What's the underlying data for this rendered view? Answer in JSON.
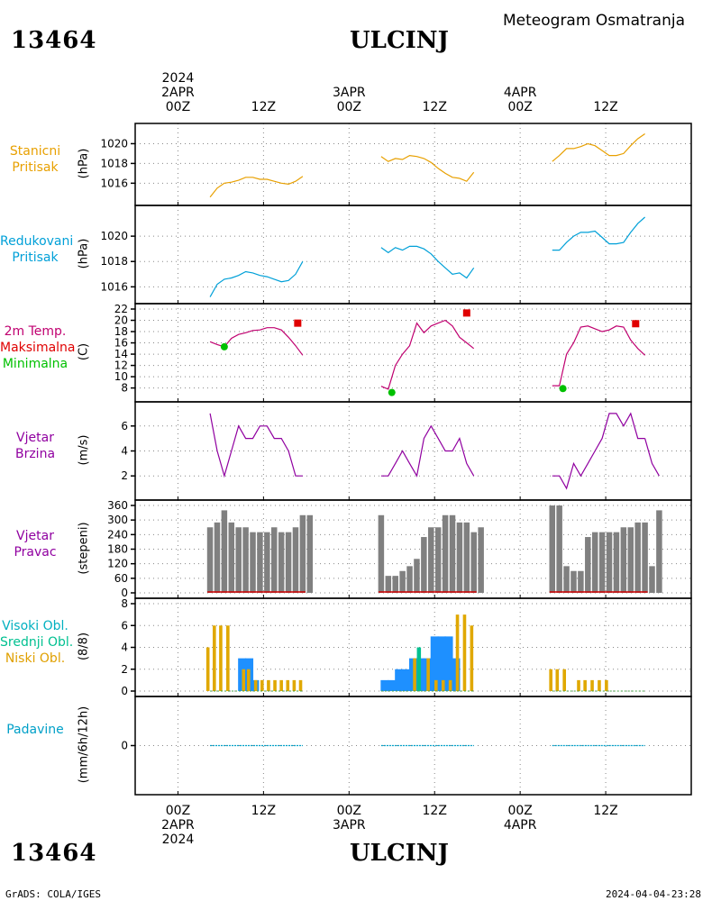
{
  "header": {
    "station_id": "13464",
    "city": "ULCINJ",
    "subtitle": "Meteogram Osmatranja"
  },
  "footer": {
    "left": "GrADS: COLA/IGES",
    "right": "2024-04-04-23:28"
  },
  "time_axis": {
    "top": [
      {
        "l1": "2024",
        "l2": "2APR",
        "l3": "00Z"
      },
      {
        "l1": "",
        "l2": "",
        "l3": "12Z"
      },
      {
        "l1": "",
        "l2": "3APR",
        "l3": "00Z"
      },
      {
        "l1": "",
        "l2": "",
        "l3": "12Z"
      },
      {
        "l1": "",
        "l2": "4APR",
        "l3": "00Z"
      },
      {
        "l1": "",
        "l2": "",
        "l3": "12Z"
      }
    ],
    "bottom": [
      {
        "l1": "00Z",
        "l2": "2APR",
        "l3": "2024"
      },
      {
        "l1": "12Z",
        "l2": "",
        "l3": ""
      },
      {
        "l1": "00Z",
        "l2": "3APR",
        "l3": ""
      },
      {
        "l1": "12Z",
        "l2": "",
        "l3": ""
      },
      {
        "l1": "00Z",
        "l2": "4APR",
        "l3": ""
      },
      {
        "l1": "12Z",
        "l2": "",
        "l3": ""
      }
    ]
  },
  "panels": {
    "p1": {
      "labels": [
        "Stanicni",
        "Pritisak"
      ],
      "ylabel": "(hPa)",
      "colors": [
        "#E8A000"
      ]
    },
    "p2": {
      "labels": [
        "Redukovani",
        "Pritisak"
      ],
      "ylabel": "(hPa)",
      "colors": [
        "#00A0D8"
      ]
    },
    "p3": {
      "labels": [
        "2m Temp.",
        "Maksimalna",
        "Minimalna"
      ],
      "ylabel": "(C)",
      "colors": [
        "#C00070",
        "#E00000",
        "#00C000"
      ]
    },
    "p4": {
      "labels": [
        "Vjetar",
        "Brzina"
      ],
      "ylabel": "(m/s)",
      "colors": [
        "#9000A0"
      ]
    },
    "p5": {
      "labels": [
        "Vjetar",
        "Pravac"
      ],
      "ylabel": "(stepeni)",
      "colors": [
        "#9000A0"
      ]
    },
    "p6": {
      "labels": [
        "Visoki Obl.",
        "Srednji Obl.",
        "Niski Obl."
      ],
      "ylabel": "(8/8)",
      "colors": [
        "#00B0C0",
        "#00C090",
        "#E0A000"
      ]
    },
    "p7": {
      "labels": [
        "Padavine"
      ],
      "ylabel": "(mm/6h/12h)",
      "colors": [
        "#00A0C8"
      ]
    }
  },
  "chart_data": [
    {
      "type": "line",
      "panel": "Stanicni Pritisak",
      "ylabel": "(hPa)",
      "ylim": [
        1014.3,
        1021.5
      ],
      "yticks": [
        1016,
        1018,
        1020
      ],
      "xlim_hours": [
        -6,
        72
      ],
      "series": [
        {
          "color": "#E8A000",
          "x": [
            4.5,
            5.5,
            6.5,
            7.5,
            8.5,
            9.5,
            10.5,
            11.5,
            12.5,
            13.5,
            14.5,
            15.5,
            16.5,
            17.5
          ],
          "values": [
            1014.6,
            1015.5,
            1016.0,
            1016.1,
            1016.3,
            1016.6,
            1016.6,
            1016.4,
            1016.4,
            1016.2,
            1016.0,
            1015.9,
            1016.2,
            1016.7
          ]
        },
        {
          "color": "#E8A000",
          "x": [
            28.5,
            29.5,
            30.5,
            31.5,
            32.5,
            33.5,
            34.5,
            35.5,
            36.5,
            37.5,
            38.5,
            39.5,
            40.5,
            41.5
          ],
          "values": [
            1018.7,
            1018.2,
            1018.5,
            1018.4,
            1018.8,
            1018.7,
            1018.5,
            1018.1,
            1017.5,
            1017.0,
            1016.6,
            1016.5,
            1016.2,
            1017.1
          ]
        },
        {
          "color": "#E8A000",
          "x": [
            52.5,
            53.5,
            54.5,
            55.5,
            56.5,
            57.5,
            58.5,
            59.5,
            60.5,
            61.5,
            62.5,
            63.5,
            64.5,
            65.5
          ],
          "values": [
            1018.2,
            1018.8,
            1019.5,
            1019.5,
            1019.7,
            1020.0,
            1019.8,
            1019.3,
            1018.8,
            1018.8,
            1019.0,
            1019.8,
            1020.5,
            1021.0
          ]
        }
      ]
    },
    {
      "type": "line",
      "panel": "Redukovani Pritisak",
      "ylabel": "(hPa)",
      "ylim": [
        1015.1,
        1022.0
      ],
      "yticks": [
        1016,
        1018,
        1020
      ],
      "xlim_hours": [
        -6,
        72
      ],
      "series": [
        {
          "color": "#00A0D8",
          "x": [
            4.5,
            5.5,
            6.5,
            7.5,
            8.5,
            9.5,
            10.5,
            11.5,
            12.5,
            13.5,
            14.5,
            15.5,
            16.5,
            17.5
          ],
          "values": [
            1015.2,
            1016.2,
            1016.6,
            1016.7,
            1016.9,
            1017.2,
            1017.1,
            1016.9,
            1016.8,
            1016.6,
            1016.4,
            1016.5,
            1017.0,
            1018.0
          ]
        },
        {
          "color": "#00A0D8",
          "x": [
            28.5,
            29.5,
            30.5,
            31.5,
            32.5,
            33.5,
            34.5,
            35.5,
            36.5,
            37.5,
            38.5,
            39.5,
            40.5,
            41.5
          ],
          "values": [
            1019.1,
            1018.7,
            1019.1,
            1018.9,
            1019.2,
            1019.2,
            1019.0,
            1018.6,
            1018.0,
            1017.5,
            1017.0,
            1017.1,
            1016.7,
            1017.5
          ]
        },
        {
          "color": "#00A0D8",
          "x": [
            52.5,
            53.5,
            54.5,
            55.5,
            56.5,
            57.5,
            58.5,
            59.5,
            60.5,
            61.5,
            62.5,
            63.5,
            64.5,
            65.5
          ],
          "values": [
            1018.9,
            1018.9,
            1019.5,
            1020.0,
            1020.3,
            1020.3,
            1020.4,
            1019.9,
            1019.4,
            1019.4,
            1019.5,
            1020.3,
            1021.0,
            1021.5
          ]
        }
      ]
    },
    {
      "type": "line",
      "panel": "2m Temp. / Maksimalna / Minimalna",
      "ylabel": "(C)",
      "ylim": [
        6.5,
        22
      ],
      "yticks": [
        8,
        10,
        12,
        14,
        16,
        18,
        20,
        22
      ],
      "xlim_hours": [
        -6,
        72
      ],
      "series": [
        {
          "color": "#C00070",
          "x": [
            4.5,
            5.5,
            6.5,
            7.5,
            8.5,
            9.5,
            10.5,
            11.5,
            12.5,
            13.5,
            14.5,
            15.5,
            16.5,
            17.5
          ],
          "values": [
            16.2,
            15.7,
            15.3,
            16.8,
            17.5,
            17.8,
            18.2,
            18.3,
            18.7,
            18.7,
            18.3,
            17.0,
            15.5,
            13.8
          ]
        },
        {
          "color": "#C00070",
          "x": [
            28.5,
            29.5,
            30.5,
            31.5,
            32.5,
            33.5,
            34.5,
            35.5,
            36.5,
            37.5,
            38.5,
            39.5,
            40.5,
            41.5
          ],
          "values": [
            8.3,
            7.8,
            12.0,
            14.0,
            15.5,
            19.5,
            17.8,
            19.0,
            19.5,
            20.0,
            19.0,
            17.0,
            16.0,
            15.0
          ]
        },
        {
          "color": "#C00070",
          "x": [
            52.5,
            53.5,
            54.5,
            55.5,
            56.5,
            57.5,
            58.5,
            59.5,
            60.5,
            61.5,
            62.5,
            63.5,
            64.5,
            65.5
          ],
          "values": [
            8.4,
            8.4,
            14.0,
            16.0,
            18.8,
            19.0,
            18.5,
            18.0,
            18.3,
            19.0,
            18.8,
            16.5,
            15.0,
            13.8
          ]
        }
      ],
      "max_markers": {
        "color": "#E00000",
        "x": [
          16.8,
          40.5,
          64.2
        ],
        "values": [
          19.5,
          21.3,
          19.4
        ]
      },
      "min_markers": {
        "color": "#00C000",
        "x": [
          6.5,
          30.0,
          54.0
        ],
        "values": [
          15.3,
          7.2,
          7.9
        ]
      }
    },
    {
      "type": "line",
      "panel": "Vjetar Brzina",
      "ylabel": "(m/s)",
      "ylim": [
        0.5,
        7.5
      ],
      "yticks": [
        2,
        4,
        6
      ],
      "xlim_hours": [
        -6,
        72
      ],
      "series": [
        {
          "color": "#9000A0",
          "x": [
            4.5,
            5.5,
            6.5,
            7.5,
            8.5,
            9.5,
            10.5,
            11.5,
            12.5,
            13.5,
            14.5,
            15.5,
            16.5,
            17.5
          ],
          "values": [
            7,
            4,
            2,
            4,
            6,
            5,
            5,
            6,
            6,
            5,
            5,
            4,
            2,
            2
          ]
        },
        {
          "color": "#9000A0",
          "x": [
            28.5,
            29.5,
            30.5,
            31.5,
            32.5,
            33.5,
            34.5,
            35.5,
            36.5,
            37.5,
            38.5,
            39.5,
            40.5,
            41.5
          ],
          "values": [
            2,
            2,
            3,
            4,
            3,
            2,
            5,
            6,
            5,
            4,
            4,
            5,
            3,
            2
          ]
        },
        {
          "color": "#9000A0",
          "x": [
            52.5,
            53.5,
            54.5,
            55.5,
            56.5,
            57.5,
            58.5,
            59.5,
            60.5,
            61.5,
            62.5,
            63.5,
            64.5,
            65.5
          ],
          "values": [
            2,
            2,
            1,
            3,
            2,
            3,
            4,
            5,
            7,
            7,
            6,
            7,
            5,
            5
          ]
        }
      ],
      "tail": {
        "x": [
          66.5,
          67.5
        ],
        "values": [
          3,
          2
        ]
      }
    },
    {
      "type": "bar",
      "panel": "Vjetar Pravac",
      "ylabel": "(stepeni)",
      "ylim": [
        0,
        360
      ],
      "yticks": [
        0,
        60,
        120,
        180,
        240,
        300,
        360
      ],
      "xlim_hours": [
        -6,
        72
      ],
      "color": "#808080",
      "series": [
        {
          "x": [
            4.5,
            5.5,
            6.5,
            7.5,
            8.5,
            9.5,
            10.5,
            11.5,
            12.5,
            13.5,
            14.5,
            15.5,
            16.5,
            17.5
          ],
          "values": [
            270,
            290,
            340,
            290,
            270,
            270,
            250,
            250,
            250,
            270,
            250,
            250,
            270,
            320
          ]
        },
        {
          "x": [
            28.5,
            29.5,
            30.5,
            31.5,
            32.5,
            33.5,
            34.5,
            35.5,
            36.5,
            37.5,
            38.5,
            39.5,
            40.5,
            41.5
          ],
          "values": [
            320,
            70,
            70,
            90,
            110,
            140,
            230,
            270,
            270,
            320,
            320,
            290,
            290,
            250
          ]
        },
        {
          "x": [
            52.5,
            53.5,
            54.5,
            55.5,
            56.5,
            57.5,
            58.5,
            59.5,
            60.5,
            61.5,
            62.5,
            63.5,
            64.5,
            65.5
          ],
          "values": [
            360,
            360,
            110,
            90,
            90,
            230,
            250,
            250,
            250,
            250,
            270,
            270,
            290,
            290
          ]
        }
      ],
      "extra": {
        "x": [
          18.5,
          42.5,
          66.5,
          67.5
        ],
        "values": [
          320,
          270,
          110,
          340
        ]
      }
    },
    {
      "type": "bar",
      "panel": "Visoki / Srednji / Niski Obl.",
      "ylabel": "(8/8)",
      "ylim": [
        0,
        8
      ],
      "yticks": [
        0,
        2,
        4,
        6,
        8
      ],
      "xlim_hours": [
        -6,
        72
      ],
      "high": {
        "color": "#1E90FF",
        "x": [
          9.0,
          10.0,
          10.8,
          29.0,
          30.0,
          31.0,
          32.0,
          33.0,
          34.0,
          35.0,
          36.0,
          37.0,
          38.0,
          39.0
        ],
        "values": [
          3,
          3,
          1,
          1,
          1,
          2,
          2,
          3,
          3,
          3,
          5,
          5,
          5,
          3
        ]
      },
      "mid": {
        "color": "#00C090",
        "x": [
          33.8
        ],
        "values": [
          4
        ]
      },
      "low": {
        "color": "#E0A800",
        "x": [
          4.2,
          5.1,
          6.0,
          7.0,
          9.2,
          9.9,
          10.9,
          11.8,
          12.7,
          13.6,
          14.5,
          15.4,
          16.3,
          17.2,
          33.2,
          35.1,
          36.2,
          37.2,
          38.2,
          39.2,
          40.2,
          41.2,
          52.3,
          53.2,
          54.2,
          56.2,
          57.1,
          58.1,
          59.1,
          60.1
        ],
        "values": [
          4,
          6,
          6,
          6,
          2,
          2,
          1,
          1,
          1,
          1,
          1,
          1,
          1,
          1,
          3,
          3,
          1,
          1,
          1,
          7,
          7,
          6,
          2,
          2,
          2,
          1,
          1,
          1,
          1,
          1
        ]
      }
    },
    {
      "type": "bar",
      "panel": "Padavine",
      "ylabel": "(mm/6h/12h)",
      "ylim": [
        -1,
        1
      ],
      "yticks": [
        0
      ],
      "xlim_hours": [
        -6,
        72
      ],
      "color": "#00A0C8",
      "series": [
        {
          "x": [
            4.5,
            17.5
          ],
          "values": [
            0,
            0
          ]
        },
        {
          "x": [
            28.5,
            41.5
          ],
          "values": [
            0,
            0
          ]
        },
        {
          "x": [
            52.5,
            65.5
          ],
          "values": [
            0,
            0
          ]
        }
      ]
    }
  ]
}
